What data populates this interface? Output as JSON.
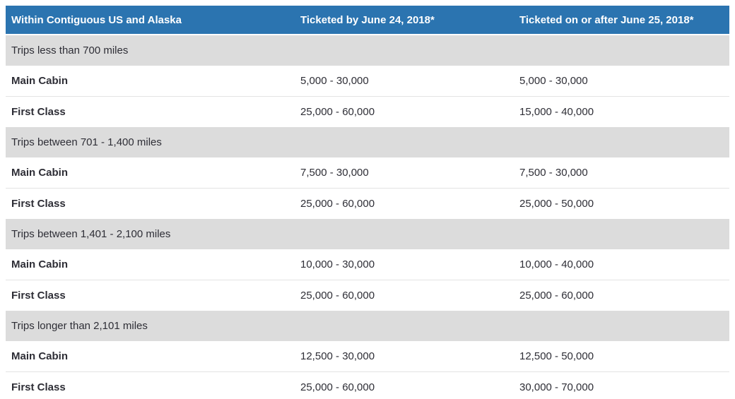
{
  "colors": {
    "header_bg": "#2b74b0",
    "header_text": "#ffffff",
    "section_bg": "#dcdcdc",
    "row_bg": "#ffffff",
    "body_text": "#2e2e36",
    "divider": "#e3e3e3"
  },
  "table": {
    "columns": {
      "region": "Within Contiguous US and Alaska",
      "before": "Ticketed by June 24, 2018*",
      "after": "Ticketed on or after June 25, 2018*"
    },
    "sections": [
      {
        "label": "Trips less than 700 miles",
        "rows": [
          {
            "label": "Main Cabin",
            "before": "5,000 - 30,000",
            "after": "5,000 - 30,000"
          },
          {
            "label": "First Class",
            "before": "25,000 - 60,000",
            "after": "15,000 - 40,000"
          }
        ]
      },
      {
        "label": "Trips between 701 - 1,400 miles",
        "rows": [
          {
            "label": "Main Cabin",
            "before": "7,500 - 30,000",
            "after": "7,500 - 30,000"
          },
          {
            "label": "First Class",
            "before": "25,000 - 60,000",
            "after": "25,000 - 50,000"
          }
        ]
      },
      {
        "label": "Trips between 1,401 - 2,100 miles",
        "rows": [
          {
            "label": "Main Cabin",
            "before": "10,000 - 30,000",
            "after": "10,000 - 40,000"
          },
          {
            "label": "First Class",
            "before": "25,000 - 60,000",
            "after": "25,000 - 60,000"
          }
        ]
      },
      {
        "label": "Trips longer than 2,101 miles",
        "rows": [
          {
            "label": "Main Cabin",
            "before": "12,500 - 30,000",
            "after": "12,500 - 50,000"
          },
          {
            "label": "First Class",
            "before": "25,000 - 60,000",
            "after": "30,000 - 70,000"
          }
        ]
      }
    ]
  }
}
